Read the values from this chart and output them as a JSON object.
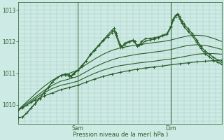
{
  "bg_color": "#ceeae4",
  "grid_color": "#a8ccc6",
  "line_color": "#2a5f2a",
  "ylim": [
    1009.4,
    1013.25
  ],
  "xlim": [
    0,
    96
  ],
  "yticks": [
    1010,
    1011,
    1012,
    1013
  ],
  "xlabel": "Pression niveau de la mer( hPa )",
  "xlabel_color": "#2a5f2a",
  "sam_x": 28,
  "dim_x": 72,
  "series": [
    {
      "pts": [
        [
          0,
          1009.85
        ],
        [
          2,
          1009.9
        ],
        [
          4,
          1010.0
        ],
        [
          6,
          1010.08
        ],
        [
          8,
          1010.15
        ],
        [
          10,
          1010.22
        ],
        [
          12,
          1010.28
        ],
        [
          16,
          1010.38
        ],
        [
          20,
          1010.48
        ],
        [
          24,
          1010.55
        ],
        [
          28,
          1010.62
        ],
        [
          32,
          1010.72
        ],
        [
          36,
          1010.82
        ],
        [
          40,
          1010.9
        ],
        [
          44,
          1010.97
        ],
        [
          48,
          1011.03
        ],
        [
          52,
          1011.08
        ],
        [
          56,
          1011.13
        ],
        [
          60,
          1011.17
        ],
        [
          64,
          1011.2
        ],
        [
          68,
          1011.23
        ],
        [
          72,
          1011.27
        ],
        [
          76,
          1011.3
        ],
        [
          80,
          1011.33
        ],
        [
          84,
          1011.36
        ],
        [
          88,
          1011.38
        ],
        [
          92,
          1011.4
        ],
        [
          96,
          1011.42
        ]
      ],
      "marker": true,
      "lw": 0.9
    },
    {
      "pts": [
        [
          0,
          1009.85
        ],
        [
          4,
          1010.0
        ],
        [
          8,
          1010.2
        ],
        [
          12,
          1010.38
        ],
        [
          16,
          1010.52
        ],
        [
          20,
          1010.62
        ],
        [
          24,
          1010.68
        ],
        [
          28,
          1010.75
        ],
        [
          32,
          1010.88
        ],
        [
          36,
          1011.0
        ],
        [
          40,
          1011.1
        ],
        [
          44,
          1011.18
        ],
        [
          48,
          1011.24
        ],
        [
          52,
          1011.28
        ],
        [
          56,
          1011.32
        ],
        [
          60,
          1011.35
        ],
        [
          64,
          1011.38
        ],
        [
          68,
          1011.42
        ],
        [
          72,
          1011.45
        ],
        [
          76,
          1011.5
        ],
        [
          80,
          1011.55
        ],
        [
          84,
          1011.6
        ],
        [
          88,
          1011.62
        ],
        [
          92,
          1011.62
        ],
        [
          96,
          1011.6
        ]
      ],
      "marker": false,
      "lw": 0.8
    },
    {
      "pts": [
        [
          0,
          1009.85
        ],
        [
          4,
          1010.05
        ],
        [
          8,
          1010.25
        ],
        [
          12,
          1010.45
        ],
        [
          16,
          1010.62
        ],
        [
          20,
          1010.75
        ],
        [
          24,
          1010.82
        ],
        [
          28,
          1010.9
        ],
        [
          32,
          1011.05
        ],
        [
          36,
          1011.2
        ],
        [
          40,
          1011.32
        ],
        [
          44,
          1011.42
        ],
        [
          48,
          1011.5
        ],
        [
          52,
          1011.55
        ],
        [
          56,
          1011.6
        ],
        [
          60,
          1011.63
        ],
        [
          64,
          1011.67
        ],
        [
          68,
          1011.7
        ],
        [
          72,
          1011.75
        ],
        [
          76,
          1011.82
        ],
        [
          80,
          1011.88
        ],
        [
          84,
          1011.9
        ],
        [
          88,
          1011.88
        ],
        [
          92,
          1011.82
        ],
        [
          96,
          1011.75
        ]
      ],
      "marker": false,
      "lw": 0.8
    },
    {
      "pts": [
        [
          0,
          1009.85
        ],
        [
          4,
          1010.1
        ],
        [
          8,
          1010.35
        ],
        [
          12,
          1010.58
        ],
        [
          16,
          1010.78
        ],
        [
          20,
          1010.92
        ],
        [
          24,
          1011.0
        ],
        [
          28,
          1011.1
        ],
        [
          32,
          1011.28
        ],
        [
          36,
          1011.45
        ],
        [
          40,
          1011.6
        ],
        [
          44,
          1011.72
        ],
        [
          48,
          1011.8
        ],
        [
          52,
          1011.85
        ],
        [
          56,
          1011.9
        ],
        [
          60,
          1011.93
        ],
        [
          64,
          1011.97
        ],
        [
          68,
          1012.0
        ],
        [
          72,
          1012.05
        ],
        [
          76,
          1012.12
        ],
        [
          80,
          1012.18
        ],
        [
          84,
          1012.2
        ],
        [
          88,
          1012.18
        ],
        [
          92,
          1012.1
        ],
        [
          96,
          1012.0
        ]
      ],
      "marker": false,
      "lw": 0.8
    },
    {
      "pts": [
        [
          0,
          1009.6
        ],
        [
          2,
          1009.62
        ],
        [
          4,
          1009.75
        ],
        [
          6,
          1009.9
        ],
        [
          8,
          1010.05
        ],
        [
          10,
          1010.2
        ],
        [
          12,
          1010.38
        ],
        [
          14,
          1010.55
        ],
        [
          16,
          1010.72
        ],
        [
          18,
          1010.85
        ],
        [
          20,
          1010.93
        ],
        [
          22,
          1010.98
        ],
        [
          24,
          1010.95
        ],
        [
          25,
          1010.88
        ],
        [
          26,
          1011.0
        ],
        [
          28,
          1011.1
        ],
        [
          30,
          1011.25
        ],
        [
          32,
          1011.4
        ],
        [
          34,
          1011.6
        ],
        [
          36,
          1011.75
        ],
        [
          38,
          1011.9
        ],
        [
          40,
          1012.05
        ],
        [
          42,
          1012.2
        ],
        [
          44,
          1012.35
        ],
        [
          45,
          1012.42
        ],
        [
          46,
          1012.28
        ],
        [
          48,
          1011.9
        ],
        [
          49,
          1011.82
        ],
        [
          50,
          1011.95
        ],
        [
          52,
          1012.0
        ],
        [
          54,
          1012.05
        ],
        [
          55,
          1012.0
        ],
        [
          56,
          1011.85
        ],
        [
          57,
          1011.9
        ],
        [
          58,
          1012.0
        ],
        [
          60,
          1012.1
        ],
        [
          62,
          1012.1
        ],
        [
          64,
          1012.12
        ],
        [
          66,
          1012.15
        ],
        [
          68,
          1012.2
        ],
        [
          70,
          1012.25
        ],
        [
          72,
          1012.5
        ],
        [
          73,
          1012.72
        ],
        [
          74,
          1012.82
        ],
        [
          75,
          1012.88
        ],
        [
          76,
          1012.78
        ],
        [
          77,
          1012.65
        ],
        [
          78,
          1012.55
        ],
        [
          80,
          1012.4
        ],
        [
          82,
          1012.25
        ],
        [
          84,
          1012.05
        ],
        [
          86,
          1011.85
        ],
        [
          88,
          1011.7
        ],
        [
          90,
          1011.6
        ],
        [
          92,
          1011.5
        ],
        [
          94,
          1011.42
        ],
        [
          96,
          1011.35
        ]
      ],
      "marker": true,
      "lw": 0.9
    },
    {
      "pts": [
        [
          0,
          1009.6
        ],
        [
          2,
          1009.62
        ],
        [
          4,
          1009.75
        ],
        [
          6,
          1009.9
        ],
        [
          8,
          1010.05
        ],
        [
          10,
          1010.2
        ],
        [
          12,
          1010.38
        ],
        [
          14,
          1010.55
        ],
        [
          16,
          1010.72
        ],
        [
          18,
          1010.85
        ],
        [
          20,
          1010.93
        ],
        [
          22,
          1010.95
        ],
        [
          24,
          1010.9
        ],
        [
          26,
          1010.98
        ],
        [
          28,
          1011.08
        ],
        [
          30,
          1011.22
        ],
        [
          32,
          1011.4
        ],
        [
          34,
          1011.58
        ],
        [
          36,
          1011.72
        ],
        [
          38,
          1011.88
        ],
        [
          40,
          1012.02
        ],
        [
          42,
          1012.15
        ],
        [
          44,
          1012.28
        ],
        [
          45,
          1012.35
        ],
        [
          46,
          1012.2
        ],
        [
          48,
          1011.82
        ],
        [
          50,
          1011.9
        ],
        [
          52,
          1011.98
        ],
        [
          54,
          1012.02
        ],
        [
          56,
          1011.88
        ],
        [
          58,
          1011.92
        ],
        [
          60,
          1012.02
        ],
        [
          62,
          1012.05
        ],
        [
          64,
          1012.08
        ],
        [
          66,
          1012.12
        ],
        [
          68,
          1012.18
        ],
        [
          70,
          1012.22
        ],
        [
          72,
          1012.45
        ],
        [
          73,
          1012.68
        ],
        [
          74,
          1012.78
        ],
        [
          75,
          1012.85
        ],
        [
          76,
          1012.72
        ],
        [
          77,
          1012.58
        ],
        [
          78,
          1012.48
        ],
        [
          80,
          1012.32
        ],
        [
          82,
          1012.18
        ],
        [
          84,
          1011.98
        ],
        [
          86,
          1011.78
        ],
        [
          88,
          1011.62
        ],
        [
          90,
          1011.52
        ],
        [
          92,
          1011.42
        ],
        [
          94,
          1011.35
        ],
        [
          96,
          1011.28
        ]
      ],
      "marker": true,
      "lw": 0.9
    }
  ]
}
